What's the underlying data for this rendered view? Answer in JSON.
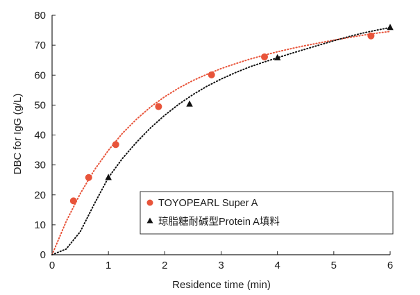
{
  "chart_data": {
    "type": "scatter",
    "xlabel": "Residence time (min)",
    "ylabel": "DBC for IgG (g/L)",
    "xlim": [
      0,
      6
    ],
    "ylim": [
      0,
      80
    ],
    "xticks": [
      "0",
      "1",
      "2",
      "3",
      "4",
      "5",
      "6"
    ],
    "yticks": [
      "0",
      "10",
      "20",
      "30",
      "40",
      "50",
      "60",
      "70",
      "80"
    ],
    "grid": false,
    "legend_position": "lower-right",
    "series": [
      {
        "name": "TOYOPEARL Super A",
        "marker": "circle",
        "color": "#e8543a",
        "line_style": "dotted",
        "x": [
          0.38,
          0.65,
          1.13,
          1.89,
          2.83,
          3.77,
          5.66
        ],
        "y": [
          18,
          25.8,
          36.8,
          49.5,
          60.1,
          66.1,
          73.1
        ],
        "fit_curve": {
          "x": [
            0,
            0.25,
            0.5,
            0.75,
            1,
            1.25,
            1.5,
            1.75,
            2,
            2.25,
            2.5,
            2.75,
            3,
            3.25,
            3.5,
            3.75,
            4,
            4.25,
            4.5,
            4.75,
            5,
            5.25,
            5.5,
            5.75,
            6
          ],
          "y": [
            0,
            11.1,
            20.4,
            28.3,
            34.9,
            40.6,
            45.3,
            49.4,
            52.8,
            55.7,
            58.2,
            60.3,
            62.2,
            63.8,
            65.3,
            66.6,
            67.8,
            68.9,
            69.9,
            70.8,
            71.7,
            72.5,
            73.3,
            74,
            74.6
          ]
        }
      },
      {
        "name": "琼脂糖耐碱型Protein A填料",
        "marker": "triangle",
        "color": "#111111",
        "line_style": "dotted",
        "x": [
          1,
          2.44,
          4,
          6
        ],
        "y": [
          25.8,
          50.3,
          65.8,
          75.9
        ],
        "fit_curve": {
          "x": [
            0,
            0.25,
            0.5,
            0.75,
            1,
            1.25,
            1.5,
            1.75,
            2,
            2.25,
            2.5,
            2.75,
            3,
            3.25,
            3.5,
            3.75,
            4,
            4.25,
            4.5,
            4.75,
            5,
            5.25,
            5.5,
            5.75,
            6
          ],
          "y": [
            0,
            1.9,
            7.7,
            17,
            25.8,
            32.2,
            37.6,
            42.4,
            46.6,
            50.3,
            53.5,
            56.3,
            58.7,
            60.8,
            62.7,
            64.3,
            65.8,
            67.3,
            68.7,
            70.1,
            71.5,
            72.8,
            74,
            75,
            75.9
          ]
        }
      }
    ]
  }
}
